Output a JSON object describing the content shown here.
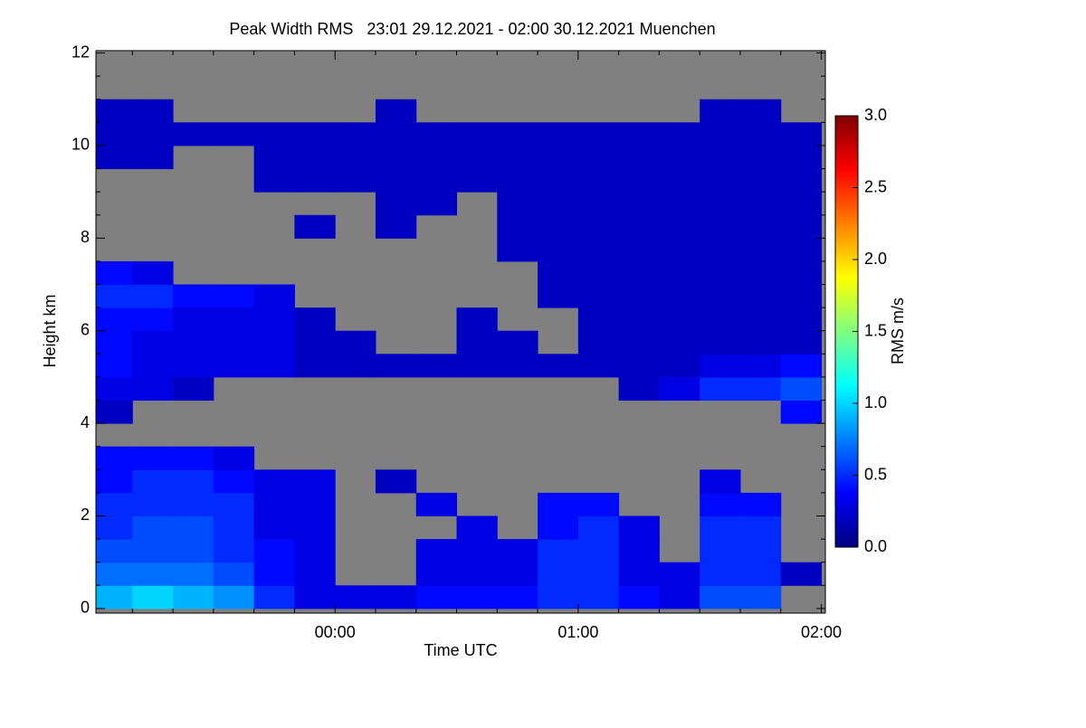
{
  "chart_data": {
    "type": "heatmap",
    "title": "Peak Width RMS   23:01 29.12.2021 - 02:00 30.12.2021 Muenchen",
    "x_label": "Time UTC",
    "y_label": "Height km",
    "xlim": [
      1,
      181
    ],
    "ylim": [
      -0.1,
      12.05
    ],
    "xticks": [
      {
        "value": 60,
        "label": "00:00"
      },
      {
        "value": 120,
        "label": "01:00"
      },
      {
        "value": 180,
        "label": "02:00"
      }
    ],
    "x_minor_ticks": [
      10,
      20,
      30,
      40,
      50,
      70,
      80,
      90,
      100,
      110,
      130,
      140,
      150,
      160,
      170
    ],
    "yticks": [
      0,
      2,
      4,
      6,
      8,
      10,
      12
    ],
    "y_minor_ticks": [
      0.5,
      1,
      1.5,
      2.5,
      3,
      3.5,
      4.5,
      5,
      5.5,
      6.5,
      7,
      7.5,
      8.5,
      9,
      9.5,
      10.5,
      11,
      11.5
    ],
    "background": "#808080",
    "colormap": "jet",
    "x_edges": [
      0,
      10,
      20,
      30,
      40,
      50,
      60,
      70,
      80,
      90,
      100,
      110,
      120,
      130,
      140,
      150,
      160,
      170,
      180
    ],
    "y_edges": [
      0,
      0.5,
      1,
      1.5,
      2,
      2.5,
      3,
      3.5,
      4,
      4.5,
      5,
      5.5,
      6,
      6.5,
      7,
      7.5,
      8,
      8.5,
      9,
      9.5,
      10,
      10.5,
      11,
      11.5,
      12
    ],
    "z": [
      [
        0.9,
        1.0,
        0.9,
        0.8,
        0.5,
        0.3,
        0.3,
        0.3,
        0.4,
        0.4,
        0.4,
        0.5,
        0.5,
        0.4,
        0.3,
        0.6,
        0.6,
        null
      ],
      [
        0.7,
        0.7,
        0.7,
        0.6,
        0.4,
        0.3,
        null,
        null,
        0.3,
        0.3,
        0.3,
        0.5,
        0.5,
        0.3,
        0.3,
        0.5,
        0.5,
        0.2
      ],
      [
        0.6,
        0.6,
        0.6,
        0.5,
        0.4,
        0.3,
        null,
        null,
        0.3,
        0.3,
        0.3,
        0.5,
        0.5,
        0.3,
        null,
        0.5,
        0.5,
        null
      ],
      [
        0.5,
        0.6,
        0.6,
        0.5,
        0.3,
        0.3,
        null,
        null,
        null,
        0.3,
        null,
        0.4,
        0.5,
        0.3,
        null,
        0.5,
        0.5,
        null
      ],
      [
        0.5,
        0.5,
        0.5,
        0.5,
        0.3,
        0.3,
        null,
        null,
        0.3,
        null,
        null,
        0.4,
        0.4,
        null,
        null,
        0.4,
        0.4,
        null
      ],
      [
        0.4,
        0.5,
        0.5,
        0.4,
        0.3,
        0.3,
        null,
        0.2,
        null,
        null,
        null,
        null,
        null,
        null,
        null,
        0.3,
        null,
        null
      ],
      [
        0.4,
        0.4,
        0.4,
        0.3,
        null,
        null,
        null,
        null,
        null,
        null,
        null,
        null,
        null,
        null,
        null,
        null,
        null,
        null
      ],
      [
        null,
        null,
        null,
        null,
        null,
        null,
        null,
        null,
        null,
        null,
        null,
        null,
        null,
        null,
        null,
        null,
        null,
        null
      ],
      [
        0.2,
        null,
        null,
        null,
        null,
        null,
        null,
        null,
        null,
        null,
        null,
        null,
        null,
        null,
        null,
        null,
        null,
        0.4
      ],
      [
        0.3,
        0.3,
        0.2,
        null,
        null,
        null,
        null,
        null,
        null,
        null,
        null,
        null,
        null,
        0.2,
        0.3,
        0.5,
        0.5,
        0.6
      ],
      [
        0.4,
        0.3,
        0.3,
        0.3,
        0.3,
        0.2,
        0.2,
        0.2,
        0.2,
        0.2,
        0.2,
        0.2,
        0.2,
        0.2,
        0.2,
        0.3,
        0.3,
        0.4
      ],
      [
        0.4,
        0.3,
        0.3,
        0.3,
        0.3,
        0.2,
        0.2,
        null,
        null,
        0.2,
        0.2,
        null,
        0.2,
        0.2,
        0.2,
        0.2,
        0.2,
        0.2
      ],
      [
        0.4,
        0.4,
        0.3,
        0.3,
        0.3,
        0.2,
        null,
        null,
        null,
        0.2,
        null,
        null,
        0.2,
        0.2,
        0.2,
        0.2,
        0.2,
        0.2
      ],
      [
        0.5,
        0.5,
        0.4,
        0.4,
        0.3,
        null,
        null,
        null,
        null,
        null,
        null,
        0.2,
        0.2,
        0.2,
        0.2,
        0.2,
        0.2,
        0.2
      ],
      [
        0.4,
        0.3,
        null,
        null,
        null,
        null,
        null,
        null,
        null,
        null,
        null,
        0.2,
        0.2,
        0.2,
        0.2,
        0.2,
        0.2,
        0.2
      ],
      [
        null,
        null,
        null,
        null,
        null,
        null,
        null,
        null,
        null,
        null,
        0.2,
        0.2,
        0.2,
        0.2,
        0.2,
        0.2,
        0.2,
        0.2
      ],
      [
        null,
        null,
        null,
        null,
        null,
        0.2,
        null,
        0.2,
        null,
        null,
        0.2,
        0.2,
        0.2,
        0.2,
        0.2,
        0.2,
        0.2,
        0.2
      ],
      [
        null,
        null,
        null,
        null,
        null,
        null,
        null,
        0.2,
        0.2,
        null,
        0.2,
        0.2,
        0.2,
        0.2,
        0.2,
        0.2,
        0.2,
        0.2
      ],
      [
        null,
        null,
        null,
        null,
        0.2,
        0.2,
        0.2,
        0.2,
        0.2,
        0.2,
        0.2,
        0.2,
        0.2,
        0.2,
        0.2,
        0.2,
        0.2,
        0.2
      ],
      [
        0.2,
        0.2,
        null,
        null,
        0.2,
        0.2,
        0.2,
        0.2,
        0.2,
        0.2,
        0.2,
        0.2,
        0.2,
        0.2,
        0.2,
        0.2,
        0.2,
        0.2
      ],
      [
        0.2,
        0.2,
        0.2,
        0.2,
        0.2,
        0.2,
        0.2,
        0.2,
        0.2,
        0.2,
        0.2,
        0.2,
        0.2,
        0.2,
        0.2,
        0.2,
        0.2,
        0.2
      ],
      [
        0.2,
        0.2,
        null,
        null,
        null,
        null,
        null,
        0.2,
        null,
        null,
        null,
        null,
        null,
        null,
        null,
        0.2,
        0.2,
        null
      ],
      [
        null,
        null,
        null,
        null,
        null,
        null,
        null,
        null,
        null,
        null,
        null,
        null,
        null,
        null,
        null,
        null,
        null,
        null
      ],
      [
        null,
        null,
        null,
        null,
        null,
        null,
        null,
        null,
        null,
        null,
        null,
        null,
        null,
        null,
        null,
        null,
        null,
        null
      ]
    ],
    "colorbar": {
      "label": "RMS m/s",
      "lim": [
        0,
        3
      ],
      "ticks": [
        {
          "value": 0,
          "label": "0.0"
        },
        0.5,
        {
          "value": 1,
          "label": "1.0"
        },
        1.5,
        {
          "value": 2,
          "label": "2.0"
        },
        2.5,
        {
          "value": 3,
          "label": "3.0"
        }
      ]
    }
  }
}
